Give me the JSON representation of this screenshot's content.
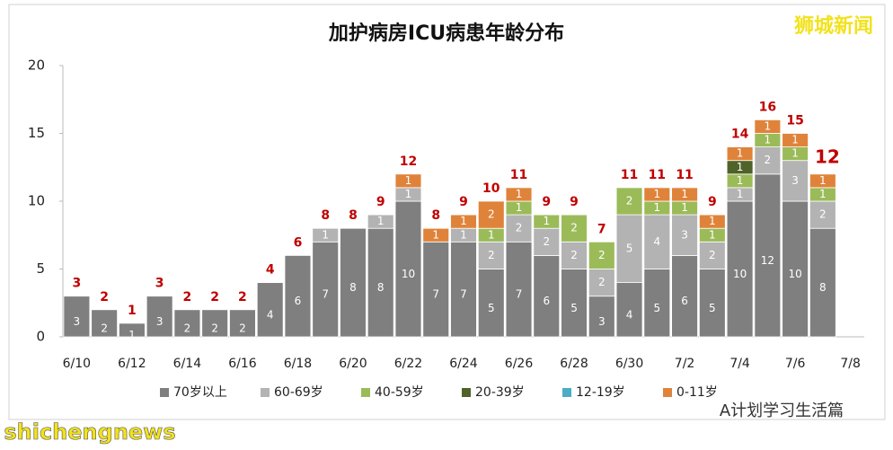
{
  "chart_data": {
    "type": "stacked-bar",
    "title": "加护病房ICU病患年龄分布",
    "categories": [
      "6/10",
      null,
      "6/12",
      null,
      "6/14",
      null,
      "6/16",
      null,
      "6/18",
      null,
      "6/20",
      null,
      "6/22",
      null,
      "6/24",
      null,
      "6/26",
      null,
      "6/28",
      null,
      "6/30",
      null,
      "7/2",
      null,
      "7/4",
      null,
      "7/6",
      null,
      "7/8"
    ],
    "series": [
      {
        "name": "70岁以上",
        "color": "#7f7f7f",
        "values": [
          3,
          2,
          1,
          3,
          2,
          2,
          2,
          4,
          6,
          7,
          8,
          8,
          10,
          7,
          7,
          5,
          7,
          6,
          5,
          3,
          4,
          5,
          6,
          5,
          10,
          12,
          10,
          8,
          null
        ]
      },
      {
        "name": "60-69岁",
        "color": "#b3b3b3",
        "values": [
          null,
          null,
          null,
          null,
          null,
          null,
          null,
          null,
          null,
          1,
          null,
          1,
          1,
          null,
          1,
          2,
          2,
          2,
          2,
          2,
          5,
          4,
          3,
          2,
          1,
          2,
          3,
          2,
          null
        ]
      },
      {
        "name": "40-59岁",
        "color": "#9bbb59",
        "values": [
          null,
          null,
          null,
          null,
          null,
          null,
          null,
          null,
          null,
          null,
          null,
          null,
          null,
          null,
          null,
          1,
          1,
          1,
          2,
          2,
          2,
          1,
          1,
          1,
          1,
          1,
          1,
          1,
          null
        ]
      },
      {
        "name": "20-39岁",
        "color": "#4f6228",
        "values": [
          null,
          null,
          null,
          null,
          null,
          null,
          null,
          null,
          null,
          null,
          null,
          null,
          null,
          null,
          null,
          null,
          null,
          null,
          null,
          null,
          null,
          null,
          null,
          null,
          1,
          null,
          null,
          null,
          null
        ]
      },
      {
        "name": "12-19岁",
        "color": "#4bacc6",
        "values": [
          null,
          null,
          null,
          null,
          null,
          null,
          null,
          null,
          null,
          null,
          null,
          null,
          null,
          null,
          null,
          null,
          null,
          null,
          null,
          null,
          null,
          null,
          null,
          null,
          null,
          null,
          null,
          null,
          null
        ]
      },
      {
        "name": "0-11岁",
        "color": "#e0833a",
        "values": [
          null,
          null,
          null,
          null,
          null,
          null,
          null,
          null,
          null,
          null,
          null,
          null,
          1,
          1,
          1,
          2,
          1,
          null,
          null,
          null,
          null,
          1,
          1,
          1,
          1,
          1,
          1,
          1,
          null
        ]
      }
    ],
    "totals": [
      3,
      2,
      1,
      3,
      2,
      2,
      2,
      4,
      6,
      8,
      8,
      9,
      12,
      8,
      9,
      10,
      11,
      9,
      9,
      7,
      11,
      11,
      11,
      9,
      14,
      16,
      15,
      12,
      null
    ],
    "totals_color": "#c00000",
    "ylim": [
      0,
      20
    ],
    "yticks": [
      0,
      5,
      10,
      15,
      20
    ],
    "grid": false,
    "legend": "bottom"
  },
  "watermarks": {
    "top_right": "狮城新闻",
    "bottom_right": "A计划学习生活篇",
    "bottom_left": "shichengnews"
  }
}
